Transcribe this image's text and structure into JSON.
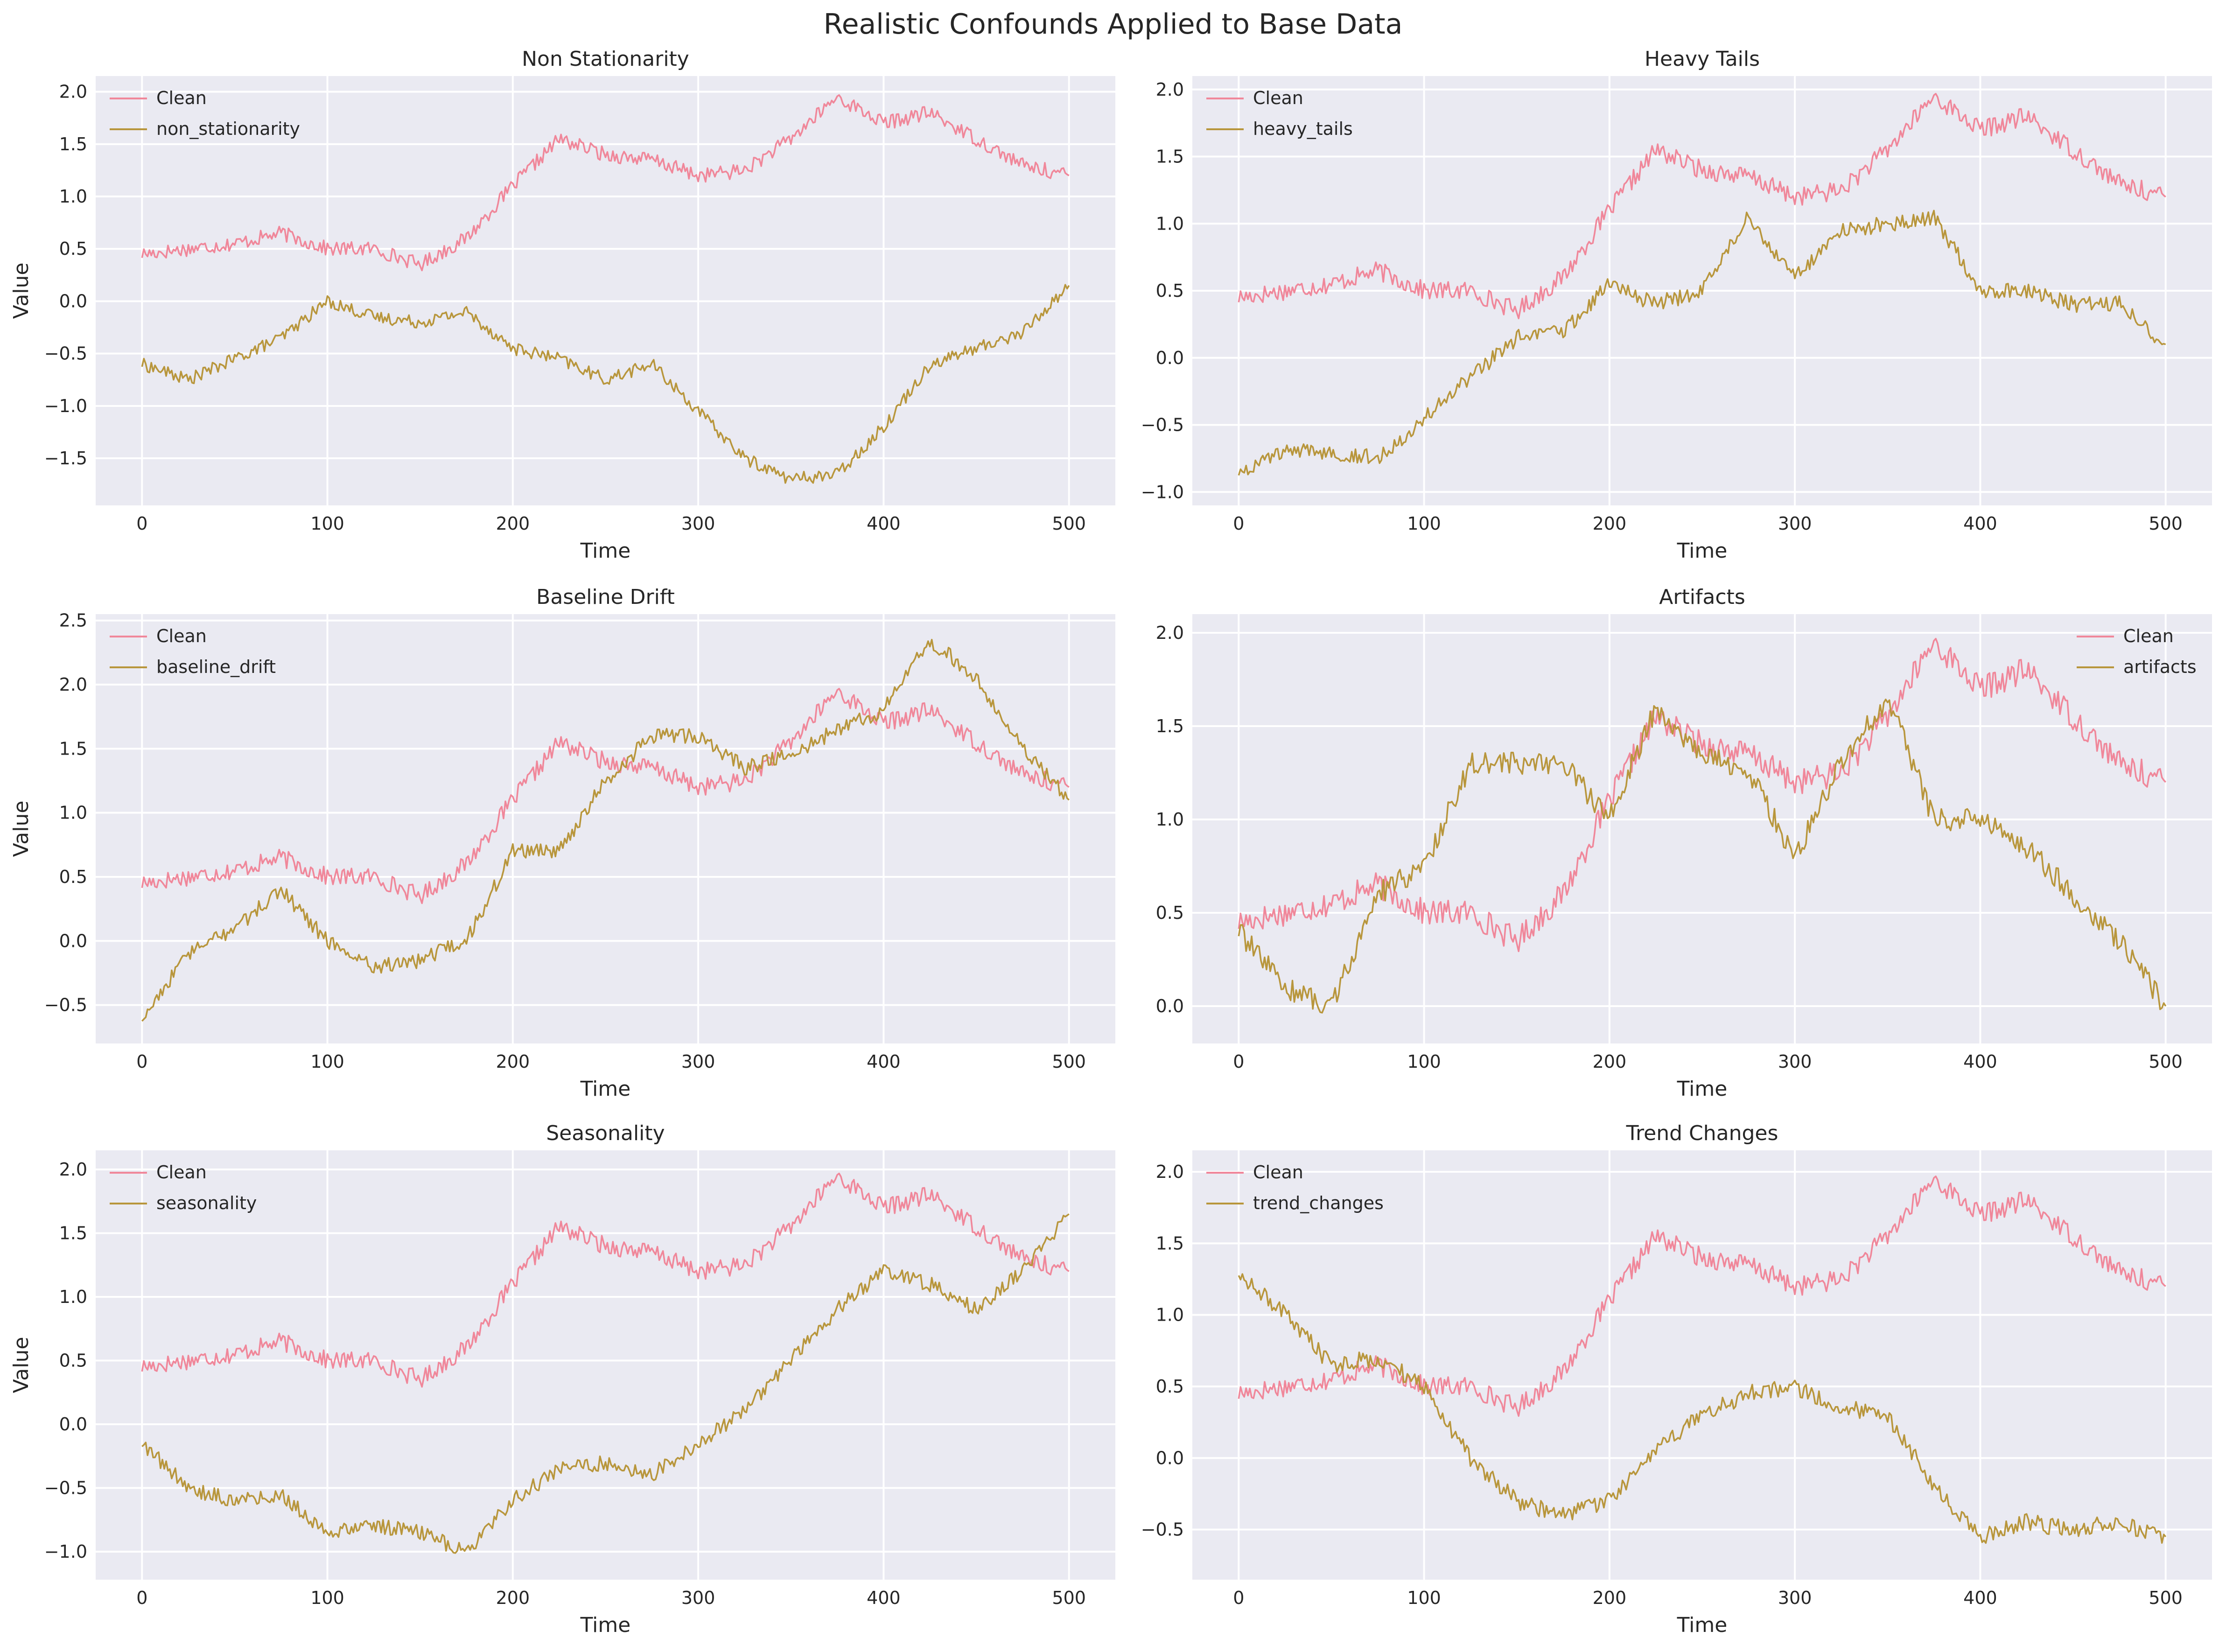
{
  "title": "Realistic Confounds Applied to Base Data",
  "colors": {
    "clean": "#f0879a",
    "confound": "#b8963c",
    "background": "#eaeaf2",
    "grid": "#ffffff"
  },
  "chart_data": [
    {
      "type": "line",
      "title": "Non Stationarity",
      "xlabel": "Time",
      "ylabel": "Value",
      "xlim": [
        -25,
        525
      ],
      "ylim": [
        -1.95,
        2.15
      ],
      "xticks": [
        0,
        100,
        200,
        300,
        400,
        500
      ],
      "xtick_labels": [
        "0",
        "100",
        "200",
        "300",
        "400",
        "500"
      ],
      "yticks": [
        -1.5,
        -1.0,
        -0.5,
        0.0,
        0.5,
        1.0,
        1.5,
        2.0
      ],
      "ytick_labels": [
        "−1.5",
        "−1.0",
        "−0.5",
        "0.0",
        "0.5",
        "1.0",
        "1.5",
        "2.0"
      ],
      "legend": "upper left",
      "grid": true,
      "series": [
        {
          "name": "Clean",
          "role": "clean",
          "x": [
            0,
            25,
            50,
            75,
            100,
            125,
            150,
            175,
            200,
            225,
            250,
            275,
            300,
            325,
            350,
            375,
            400,
            425,
            450,
            475,
            500
          ],
          "values": [
            0.45,
            0.5,
            0.55,
            0.65,
            0.5,
            0.5,
            0.35,
            0.6,
            1.1,
            1.55,
            1.4,
            1.35,
            1.2,
            1.25,
            1.55,
            1.95,
            1.7,
            1.8,
            1.55,
            1.3,
            1.2
          ]
        },
        {
          "name": "non_stationarity",
          "role": "confound",
          "x": [
            0,
            25,
            50,
            75,
            100,
            125,
            150,
            175,
            200,
            225,
            250,
            275,
            300,
            325,
            350,
            375,
            400,
            425,
            450,
            475,
            500
          ],
          "values": [
            -0.6,
            -0.75,
            -0.55,
            -0.35,
            0.0,
            -0.15,
            -0.2,
            -0.1,
            -0.45,
            -0.55,
            -0.75,
            -0.6,
            -1.05,
            -1.5,
            -1.7,
            -1.65,
            -1.2,
            -0.6,
            -0.45,
            -0.3,
            0.15
          ]
        }
      ]
    },
    {
      "type": "line",
      "title": "Heavy Tails",
      "xlabel": "Time",
      "ylabel": "",
      "xlim": [
        -25,
        525
      ],
      "ylim": [
        -1.1,
        2.1
      ],
      "xticks": [
        0,
        100,
        200,
        300,
        400,
        500
      ],
      "xtick_labels": [
        "0",
        "100",
        "200",
        "300",
        "400",
        "500"
      ],
      "yticks": [
        -1.0,
        -0.5,
        0.0,
        0.5,
        1.0,
        1.5,
        2.0
      ],
      "ytick_labels": [
        "−1.0",
        "−0.5",
        "0.0",
        "0.5",
        "1.0",
        "1.5",
        "2.0"
      ],
      "legend": "upper left",
      "grid": true,
      "series": [
        {
          "name": "Clean",
          "role": "clean",
          "x": [
            0,
            25,
            50,
            75,
            100,
            125,
            150,
            175,
            200,
            225,
            250,
            275,
            300,
            325,
            350,
            375,
            400,
            425,
            450,
            475,
            500
          ],
          "values": [
            0.45,
            0.5,
            0.55,
            0.65,
            0.5,
            0.5,
            0.35,
            0.6,
            1.1,
            1.55,
            1.4,
            1.35,
            1.2,
            1.25,
            1.55,
            1.95,
            1.7,
            1.8,
            1.55,
            1.3,
            1.2
          ]
        },
        {
          "name": "heavy_tails",
          "role": "confound",
          "x": [
            0,
            25,
            50,
            75,
            100,
            125,
            150,
            175,
            200,
            225,
            250,
            275,
            300,
            325,
            350,
            375,
            400,
            425,
            450,
            475,
            500
          ],
          "values": [
            -0.85,
            -0.7,
            -0.7,
            -0.75,
            -0.45,
            -0.15,
            0.15,
            0.2,
            0.55,
            0.4,
            0.5,
            1.05,
            0.6,
            0.95,
            1.0,
            1.05,
            0.5,
            0.5,
            0.4,
            0.4,
            0.1
          ]
        }
      ]
    },
    {
      "type": "line",
      "title": "Baseline Drift",
      "xlabel": "Time",
      "ylabel": "Value",
      "xlim": [
        -25,
        525
      ],
      "ylim": [
        -0.8,
        2.55
      ],
      "xticks": [
        0,
        100,
        200,
        300,
        400,
        500
      ],
      "xtick_labels": [
        "0",
        "100",
        "200",
        "300",
        "400",
        "500"
      ],
      "yticks": [
        -0.5,
        0.0,
        0.5,
        1.0,
        1.5,
        2.0,
        2.5
      ],
      "ytick_labels": [
        "−0.5",
        "0.0",
        "0.5",
        "1.0",
        "1.5",
        "2.0",
        "2.5"
      ],
      "legend": "upper left",
      "grid": true,
      "series": [
        {
          "name": "Clean",
          "role": "clean",
          "x": [
            0,
            25,
            50,
            75,
            100,
            125,
            150,
            175,
            200,
            225,
            250,
            275,
            300,
            325,
            350,
            375,
            400,
            425,
            450,
            475,
            500
          ],
          "values": [
            0.45,
            0.5,
            0.55,
            0.65,
            0.5,
            0.5,
            0.35,
            0.6,
            1.1,
            1.55,
            1.4,
            1.35,
            1.2,
            1.25,
            1.55,
            1.95,
            1.7,
            1.8,
            1.55,
            1.3,
            1.2
          ]
        },
        {
          "name": "baseline_drift",
          "role": "confound",
          "x": [
            0,
            25,
            50,
            75,
            100,
            125,
            150,
            175,
            200,
            225,
            250,
            275,
            300,
            325,
            350,
            375,
            400,
            425,
            450,
            475,
            500
          ],
          "values": [
            -0.6,
            -0.1,
            0.1,
            0.4,
            0.0,
            -0.2,
            -0.15,
            0.0,
            0.7,
            0.7,
            1.25,
            1.6,
            1.6,
            1.35,
            1.45,
            1.65,
            1.8,
            2.35,
            2.05,
            1.5,
            1.1
          ]
        }
      ]
    },
    {
      "type": "line",
      "title": "Artifacts",
      "xlabel": "Time",
      "ylabel": "",
      "xlim": [
        -25,
        525
      ],
      "ylim": [
        -0.2,
        2.1
      ],
      "xticks": [
        0,
        100,
        200,
        300,
        400,
        500
      ],
      "xtick_labels": [
        "0",
        "100",
        "200",
        "300",
        "400",
        "500"
      ],
      "yticks": [
        0.0,
        0.5,
        1.0,
        1.5,
        2.0
      ],
      "ytick_labels": [
        "0.0",
        "0.5",
        "1.0",
        "1.5",
        "2.0"
      ],
      "legend": "upper right",
      "grid": true,
      "series": [
        {
          "name": "Clean",
          "role": "clean",
          "x": [
            0,
            25,
            50,
            75,
            100,
            125,
            150,
            175,
            200,
            225,
            250,
            275,
            300,
            325,
            350,
            375,
            400,
            425,
            450,
            475,
            500
          ],
          "values": [
            0.45,
            0.5,
            0.55,
            0.65,
            0.5,
            0.5,
            0.35,
            0.6,
            1.1,
            1.55,
            1.4,
            1.35,
            1.2,
            1.25,
            1.55,
            1.95,
            1.7,
            1.8,
            1.55,
            1.3,
            1.2
          ]
        },
        {
          "name": "artifacts",
          "role": "confound",
          "x": [
            0,
            25,
            50,
            75,
            100,
            125,
            150,
            175,
            200,
            225,
            250,
            275,
            300,
            325,
            350,
            375,
            400,
            425,
            450,
            475,
            500
          ],
          "values": [
            0.4,
            0.1,
            0.0,
            0.6,
            0.75,
            1.3,
            1.3,
            1.3,
            1.0,
            1.6,
            1.35,
            1.25,
            0.8,
            1.3,
            1.65,
            1.0,
            1.0,
            0.85,
            0.6,
            0.35,
            0.0
          ]
        }
      ]
    },
    {
      "type": "line",
      "title": "Seasonality",
      "xlabel": "Time",
      "ylabel": "Value",
      "xlim": [
        -25,
        525
      ],
      "ylim": [
        -1.22,
        2.15
      ],
      "xticks": [
        0,
        100,
        200,
        300,
        400,
        500
      ],
      "xtick_labels": [
        "0",
        "100",
        "200",
        "300",
        "400",
        "500"
      ],
      "yticks": [
        -1.0,
        -0.5,
        0.0,
        0.5,
        1.0,
        1.5,
        2.0
      ],
      "ytick_labels": [
        "−1.0",
        "−0.5",
        "0.0",
        "0.5",
        "1.0",
        "1.5",
        "2.0"
      ],
      "legend": "upper left",
      "grid": true,
      "series": [
        {
          "name": "Clean",
          "role": "clean",
          "x": [
            0,
            25,
            50,
            75,
            100,
            125,
            150,
            175,
            200,
            225,
            250,
            275,
            300,
            325,
            350,
            375,
            400,
            425,
            450,
            475,
            500
          ],
          "values": [
            0.45,
            0.5,
            0.55,
            0.65,
            0.5,
            0.5,
            0.35,
            0.6,
            1.1,
            1.55,
            1.4,
            1.35,
            1.2,
            1.25,
            1.55,
            1.95,
            1.7,
            1.8,
            1.55,
            1.3,
            1.2
          ]
        },
        {
          "name": "seasonality",
          "role": "confound",
          "x": [
            0,
            25,
            50,
            75,
            100,
            125,
            150,
            175,
            200,
            225,
            250,
            275,
            300,
            325,
            350,
            375,
            400,
            425,
            450,
            475,
            500
          ],
          "values": [
            -0.15,
            -0.5,
            -0.6,
            -0.55,
            -0.85,
            -0.8,
            -0.85,
            -1.0,
            -0.6,
            -0.35,
            -0.3,
            -0.4,
            -0.15,
            0.1,
            0.5,
            0.9,
            1.2,
            1.1,
            0.9,
            1.2,
            1.65
          ]
        }
      ]
    },
    {
      "type": "line",
      "title": "Trend Changes",
      "xlabel": "Time",
      "ylabel": "",
      "xlim": [
        -25,
        525
      ],
      "ylim": [
        -0.85,
        2.15
      ],
      "xticks": [
        0,
        100,
        200,
        300,
        400,
        500
      ],
      "xtick_labels": [
        "0",
        "100",
        "200",
        "300",
        "400",
        "500"
      ],
      "yticks": [
        -0.5,
        0.0,
        0.5,
        1.0,
        1.5,
        2.0
      ],
      "ytick_labels": [
        "−0.5",
        "0.0",
        "0.5",
        "1.0",
        "1.5",
        "2.0"
      ],
      "legend": "upper left",
      "grid": true,
      "series": [
        {
          "name": "Clean",
          "role": "clean",
          "x": [
            0,
            25,
            50,
            75,
            100,
            125,
            150,
            175,
            200,
            225,
            250,
            275,
            300,
            325,
            350,
            375,
            400,
            425,
            450,
            475,
            500
          ],
          "values": [
            0.45,
            0.5,
            0.55,
            0.65,
            0.5,
            0.5,
            0.35,
            0.6,
            1.1,
            1.55,
            1.4,
            1.35,
            1.2,
            1.25,
            1.55,
            1.95,
            1.7,
            1.8,
            1.55,
            1.3,
            1.2
          ]
        },
        {
          "name": "trend_changes",
          "role": "confound",
          "x": [
            0,
            25,
            50,
            75,
            100,
            125,
            150,
            175,
            200,
            225,
            250,
            275,
            300,
            325,
            350,
            375,
            400,
            425,
            450,
            475,
            500
          ],
          "values": [
            1.3,
            1.0,
            0.65,
            0.7,
            0.5,
            0.0,
            -0.3,
            -0.4,
            -0.3,
            0.05,
            0.3,
            0.45,
            0.5,
            0.35,
            0.3,
            -0.2,
            -0.55,
            -0.45,
            -0.5,
            -0.45,
            -0.55
          ]
        }
      ]
    }
  ]
}
